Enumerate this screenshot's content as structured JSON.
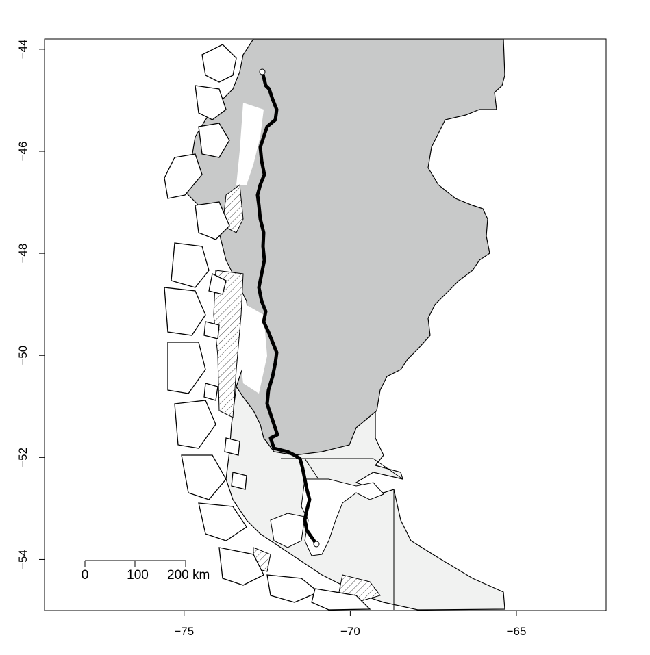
{
  "map": {
    "x_ticks": [
      {
        "value": -75,
        "label": "−75"
      },
      {
        "value": -70,
        "label": "−70"
      },
      {
        "value": -65,
        "label": "−65"
      }
    ],
    "y_ticks": [
      {
        "value": -44,
        "label": "−44"
      },
      {
        "value": -46,
        "label": "−46"
      },
      {
        "value": -48,
        "label": "−48"
      },
      {
        "value": -50,
        "label": "−50"
      },
      {
        "value": -52,
        "label": "−52"
      },
      {
        "value": -54,
        "label": "−54"
      }
    ],
    "lon_range": [
      -79.2,
      -62.3
    ],
    "lat_range": [
      -55.0,
      -43.8
    ],
    "scale_bar": {
      "labels": [
        "0",
        "100",
        "200 km"
      ]
    },
    "route": {
      "start": {
        "lon": -72.58,
        "lat": -44.4
      },
      "end": {
        "lon": -71.05,
        "lat": -53.65
      }
    },
    "colors": {
      "land_patagonia": "#c8c9c9",
      "land_south": "#f1f2f1",
      "ice_field": "#ffffff",
      "coastline": "#000000",
      "route": "#000000"
    }
  }
}
